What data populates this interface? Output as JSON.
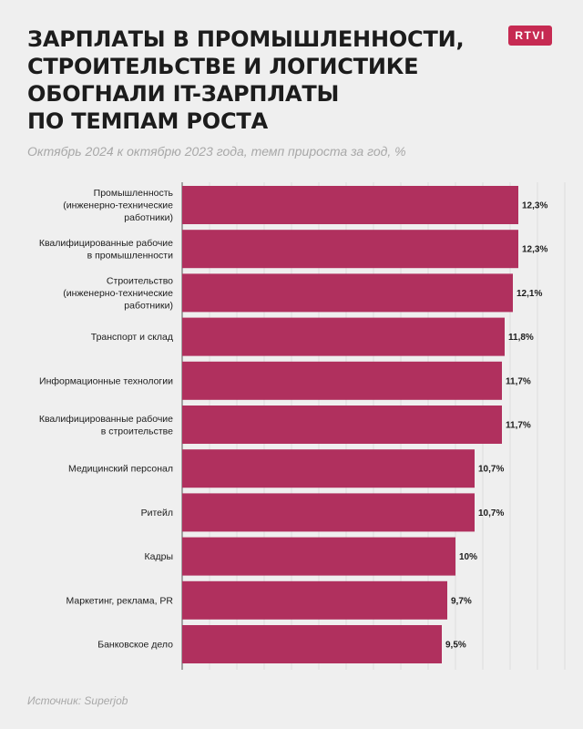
{
  "header": {
    "title_lines": [
      "ЗАРПЛАТЫ В ПРОМЫШЛЕННОСТИ,",
      "СТРОИТЕЛЬСТВЕ И ЛОГИСТИКЕ",
      "ОБОГНАЛИ IT-ЗАРПЛАТЫ",
      "ПО ТЕМПАМ РОСТА"
    ],
    "subtitle": "Октябрь 2024 к октябрю 2023 года, темп прироста за год, %",
    "logo_text": "RTVI"
  },
  "footer": {
    "source": "Источник: Superjob"
  },
  "colors": {
    "bar": "#b0305e",
    "logo": "#c62a52",
    "background": "#efefef"
  },
  "chart_data": {
    "type": "bar",
    "orientation": "horizontal",
    "categories": [
      [
        "Промышленность",
        "(инженерно-технические",
        "работники)"
      ],
      [
        "Квалифицированные рабочие",
        "в промышленности"
      ],
      [
        "Строительство",
        "(инженерно-технические",
        "работники)"
      ],
      [
        "Транспорт и склад"
      ],
      [
        "Информационные технологии"
      ],
      [
        "Квалифицированные рабочие",
        "в строительстве"
      ],
      [
        "Медицинский персонал"
      ],
      [
        "Ритейл"
      ],
      [
        "Кадры"
      ],
      [
        "Маркетинг, реклама, PR"
      ],
      [
        "Банковское дело"
      ]
    ],
    "values": [
      12.3,
      12.3,
      12.1,
      11.8,
      11.7,
      11.7,
      10.7,
      10.7,
      10,
      9.7,
      9.5
    ],
    "value_labels": [
      "12,3%",
      "12,3%",
      "12,1%",
      "11,8%",
      "11,7%",
      "11,7%",
      "10,7%",
      "10,7%",
      "10%",
      "9,7%",
      "9,5%"
    ],
    "xlim": [
      0,
      14
    ],
    "grid": "vertical",
    "legend": "none"
  }
}
